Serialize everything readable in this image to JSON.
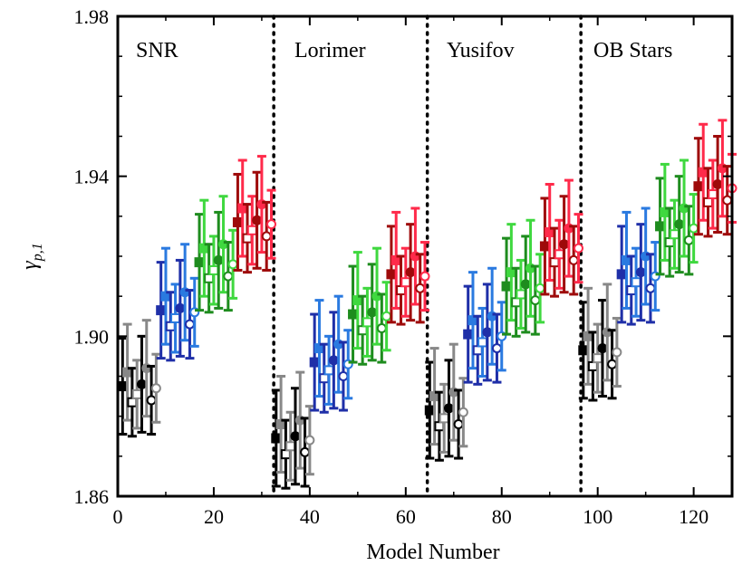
{
  "chart_data": {
    "type": "scatter",
    "title": "",
    "xlabel": "Model Number",
    "ylabel": "γ_{p,1}",
    "xlim": [
      0,
      128
    ],
    "ylim": [
      1.86,
      1.98
    ],
    "xticks": [
      0,
      20,
      40,
      60,
      80,
      100,
      120
    ],
    "yticks": [
      1.86,
      1.9,
      1.94,
      1.98
    ],
    "ytick_labels": [
      "1.86",
      "1.90",
      "1.94",
      "1.98"
    ],
    "grid": false,
    "legend": "none",
    "dividers_x": [
      32.5,
      64.5,
      96.5
    ],
    "panels": [
      {
        "label": "SNR",
        "x_start": 0,
        "base": 1.8875
      },
      {
        "label": "Lorimer",
        "x_start": 32,
        "base": 1.8745
      },
      {
        "label": "Yusifov",
        "x_start": 64,
        "base": 1.8815
      },
      {
        "label": "OB Stars",
        "x_start": 96,
        "base": 1.8965
      }
    ],
    "color_groups": [
      {
        "colors": [
          "#000000",
          "#888888"
        ],
        "offset": 0.0
      },
      {
        "colors": [
          "#1f2fa8",
          "#2a7ae0"
        ],
        "offset": 0.019
      },
      {
        "colors": [
          "#1e8c1e",
          "#3fd83f"
        ],
        "offset": 0.031
      },
      {
        "colors": [
          "#9e0a0a",
          "#ff2a4a"
        ],
        "offset": 0.041
      }
    ],
    "marker_pattern": [
      {
        "dx": 0,
        "dy": 0.0,
        "marker": "filled-square",
        "shade": 0,
        "err": 0.012
      },
      {
        "dx": 1,
        "dy": 0.0035,
        "marker": "filled-square",
        "shade": 1,
        "err": 0.012
      },
      {
        "dx": 2,
        "dy": -0.004,
        "marker": "open-square",
        "shade": 0,
        "err": 0.0085
      },
      {
        "dx": 3,
        "dy": -0.002,
        "marker": "open-square",
        "shade": 1,
        "err": 0.0085
      },
      {
        "dx": 4,
        "dy": 0.0005,
        "marker": "filled-circle",
        "shade": 0,
        "err": 0.012
      },
      {
        "dx": 5,
        "dy": 0.0045,
        "marker": "filled-circle",
        "shade": 1,
        "err": 0.012
      },
      {
        "dx": 6,
        "dy": -0.0035,
        "marker": "open-circle",
        "shade": 0,
        "err": 0.0085
      },
      {
        "dx": 7,
        "dy": -0.0005,
        "marker": "open-circle",
        "shade": 1,
        "err": 0.0085
      }
    ]
  }
}
